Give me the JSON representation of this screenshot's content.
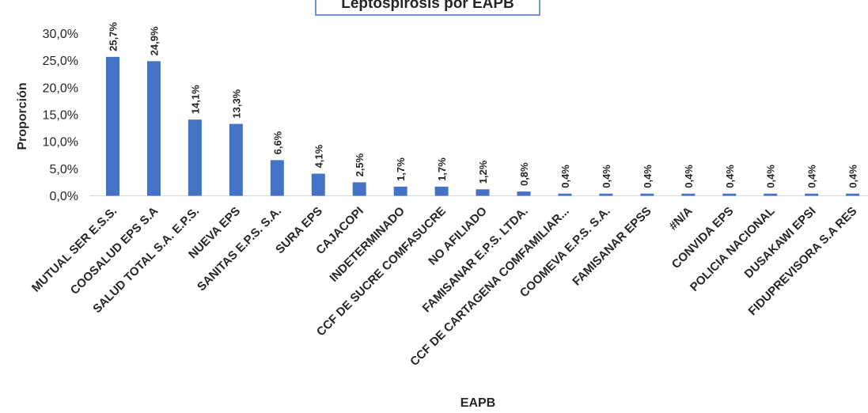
{
  "chart_data": {
    "type": "bar",
    "title": "Leptospirosis por EAPB",
    "xlabel": "EAPB",
    "ylabel": "Proporción",
    "ylim": [
      0,
      30
    ],
    "yticks": [
      "0,0%",
      "5,0%",
      "10,0%",
      "15,0%",
      "20,0%",
      "25,0%",
      "30,0%"
    ],
    "grid": false,
    "legend": "none",
    "bar_color": "#4472C4",
    "categories": [
      "MUTUAL SER E.S.S.",
      "COOSALUD EPS S.A",
      "SALUD TOTAL S.A. E.P.S.",
      "NUEVA EPS",
      "SANITAS E.P.S. S.A.",
      "SURA EPS",
      "CAJACOPI",
      "INDETERMINADO",
      "CCF DE SUCRE COMFASUCRE",
      "NO AFILIADO",
      "FAMISANAR E.P.S. LTDA.",
      "CCF DE CARTAGENA COMFAMILIAR...",
      "COOMEVA E.P.S. S.A.",
      "FAMISANAR EPSS",
      "#N/A",
      "CONVIDA EPS",
      "POLICIA NACIONAL",
      "DUSAKAWI EPSI",
      "FIDUPREVISORA S.A RES"
    ],
    "values": [
      25.7,
      24.9,
      14.1,
      13.3,
      6.6,
      4.1,
      2.5,
      1.7,
      1.7,
      1.2,
      0.8,
      0.4,
      0.4,
      0.4,
      0.4,
      0.4,
      0.4,
      0.4,
      0.4
    ],
    "data_labels": [
      "25,7%",
      "24,9%",
      "14,1%",
      "13,3%",
      "6,6%",
      "4,1%",
      "2,5%",
      "1,7%",
      "1,7%",
      "1,2%",
      "0,8%",
      "0,4%",
      "0,4%",
      "0,4%",
      "0,4%",
      "0,4%",
      "0,4%",
      "0,4%",
      "0,4%"
    ]
  }
}
